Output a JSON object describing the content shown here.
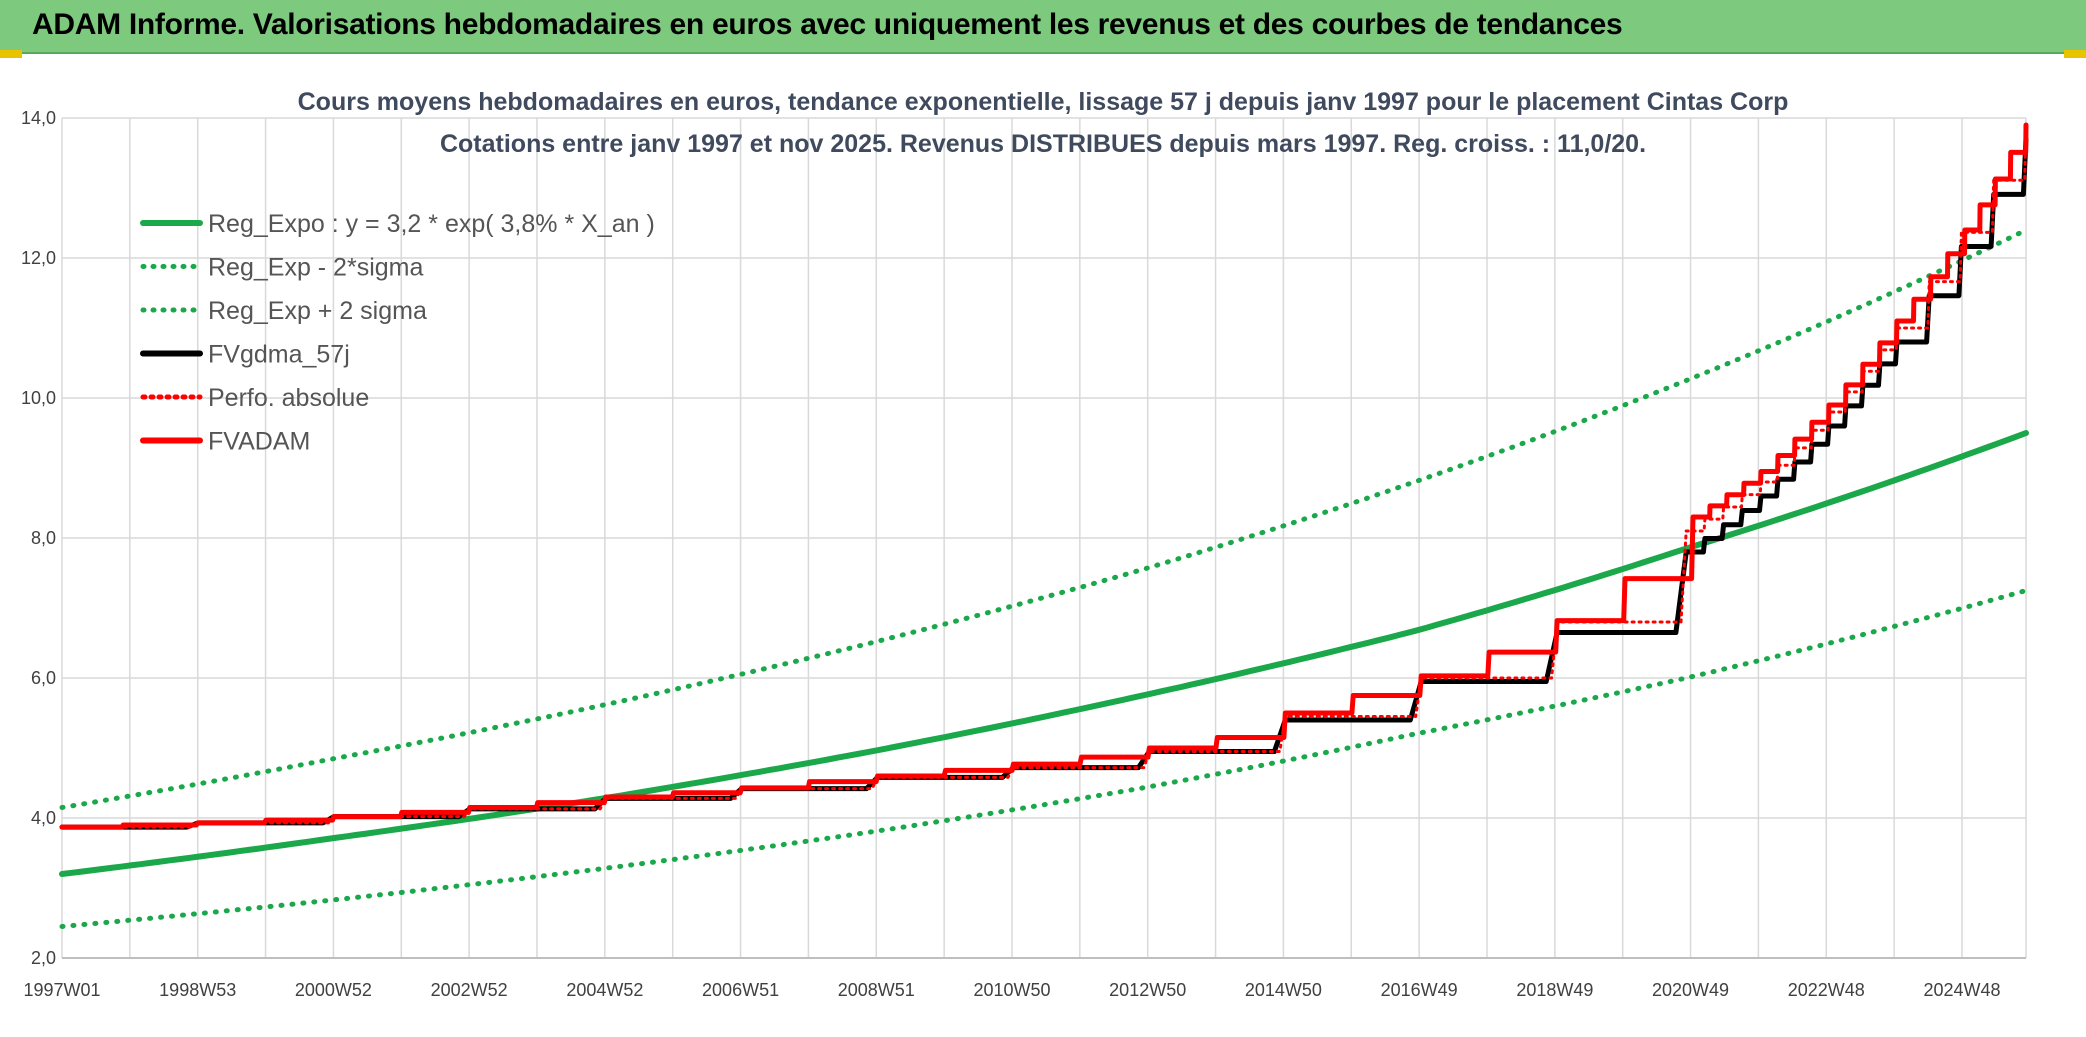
{
  "banner": {
    "title": "ADAM Informe. Valorisations hebdomadaires en euros avec uniquement les revenus et des courbes de tendances"
  },
  "colors": {
    "banner_bg": "#7dc97d",
    "trend": "#1aa84a",
    "fvgdma": "#000000",
    "fvadam": "#ff0000",
    "grid": "#d9d9d9"
  },
  "chart_data": {
    "type": "line",
    "title": [
      "Cours moyens hebdomadaires en euros, tendance exponentielle, lissage 57 j depuis janv 1997 pour le placement Cintas Corp",
      "Cotations entre janv 1997 et nov 2025. Revenus DISTRIBUES depuis mars 1997. Reg. croiss. : 11,0/20."
    ],
    "xlabel": "",
    "ylabel": "",
    "ylim": [
      2.0,
      14.0
    ],
    "y_ticks": [
      "2,0",
      "4,0",
      "6,0",
      "8,0",
      "10,0",
      "12,0",
      "14,0"
    ],
    "x_range": [
      1997.0,
      2025.9
    ],
    "x_tick_labels": [
      "1997W01",
      "1998W53",
      "2000W52",
      "2002W52",
      "2004W52",
      "2006W51",
      "2008W51",
      "2010W50",
      "2012W50",
      "2014W50",
      "2016W49",
      "2018W49",
      "2020W49",
      "2022W48",
      "2024W48"
    ],
    "grid": true,
    "legend_position": "top-left",
    "series": [
      {
        "name": "Reg_Expo : y = 3,2 * exp( 3,8% *  X_an )",
        "style": "solid",
        "color": "#1aa84a",
        "x": [
          1997.0,
          2000.9,
          2004.9,
          2008.9,
          2012.9,
          2016.9,
          2020.9,
          2025.9
        ],
        "values": [
          3.2,
          3.7,
          4.27,
          4.95,
          5.75,
          6.67,
          7.85,
          9.5
        ]
      },
      {
        "name": "Reg_Exp - 2*sigma",
        "style": "dotted",
        "color": "#1aa84a",
        "x": [
          1997.0,
          2000.9,
          2004.9,
          2008.9,
          2012.9,
          2016.9,
          2020.9,
          2025.9
        ],
        "values": [
          2.45,
          2.82,
          3.27,
          3.8,
          4.43,
          5.2,
          6.0,
          7.25
        ]
      },
      {
        "name": "Reg_Exp + 2 sigma",
        "style": "dotted",
        "color": "#1aa84a",
        "x": [
          1997.0,
          2000.9,
          2004.9,
          2008.9,
          2012.9,
          2016.9,
          2020.9,
          2025.9
        ],
        "values": [
          4.15,
          4.83,
          5.6,
          6.5,
          7.55,
          8.8,
          10.25,
          12.4
        ]
      },
      {
        "name": "FVgdma_57j",
        "style": "solid",
        "color": "#000000",
        "x": [
          1997.0,
          1999.0,
          2001.0,
          2003.0,
          2005.0,
          2007.0,
          2009.0,
          2011.0,
          2013.0,
          2015.0,
          2017.0,
          2019.0,
          2020.9,
          2022.0,
          2023.0,
          2024.0,
          2025.9
        ],
        "values": [
          3.87,
          3.93,
          4.02,
          4.13,
          4.28,
          4.42,
          4.58,
          4.72,
          4.95,
          5.4,
          5.95,
          6.65,
          7.8,
          8.6,
          9.6,
          10.8,
          13.7
        ]
      },
      {
        "name": "Perfo. absolue",
        "style": "dotted",
        "color": "#ff0000",
        "x": [
          1997.0,
          1999.0,
          2001.0,
          2003.0,
          2005.0,
          2007.0,
          2009.0,
          2011.0,
          2013.0,
          2015.0,
          2017.0,
          2019.0,
          2020.9,
          2022.0,
          2023.0,
          2024.0,
          2025.9
        ],
        "values": [
          3.87,
          3.93,
          4.02,
          4.13,
          4.28,
          4.42,
          4.58,
          4.72,
          4.95,
          5.45,
          6.0,
          6.8,
          8.1,
          8.8,
          9.8,
          11.0,
          13.9
        ]
      },
      {
        "name": "FVADAM",
        "style": "solid",
        "color": "#ff0000",
        "x": [
          1997.0,
          1997.9,
          1999.0,
          2000.0,
          2001.0,
          2002.0,
          2003.0,
          2004.0,
          2005.0,
          2006.0,
          2007.0,
          2008.0,
          2009.0,
          2010.0,
          2011.0,
          2012.0,
          2013.0,
          2014.0,
          2015.0,
          2016.0,
          2017.0,
          2018.0,
          2019.0,
          2020.0,
          2021.0,
          2022.0,
          2023.0,
          2024.0,
          2025.0,
          2025.9
        ],
        "values": [
          3.87,
          3.9,
          3.93,
          3.97,
          4.02,
          4.08,
          4.15,
          4.22,
          4.3,
          4.36,
          4.43,
          4.52,
          4.6,
          4.68,
          4.77,
          4.87,
          5.0,
          5.15,
          5.5,
          5.75,
          6.03,
          6.37,
          6.82,
          7.42,
          8.3,
          8.95,
          9.9,
          11.1,
          12.4,
          13.9
        ]
      }
    ]
  }
}
